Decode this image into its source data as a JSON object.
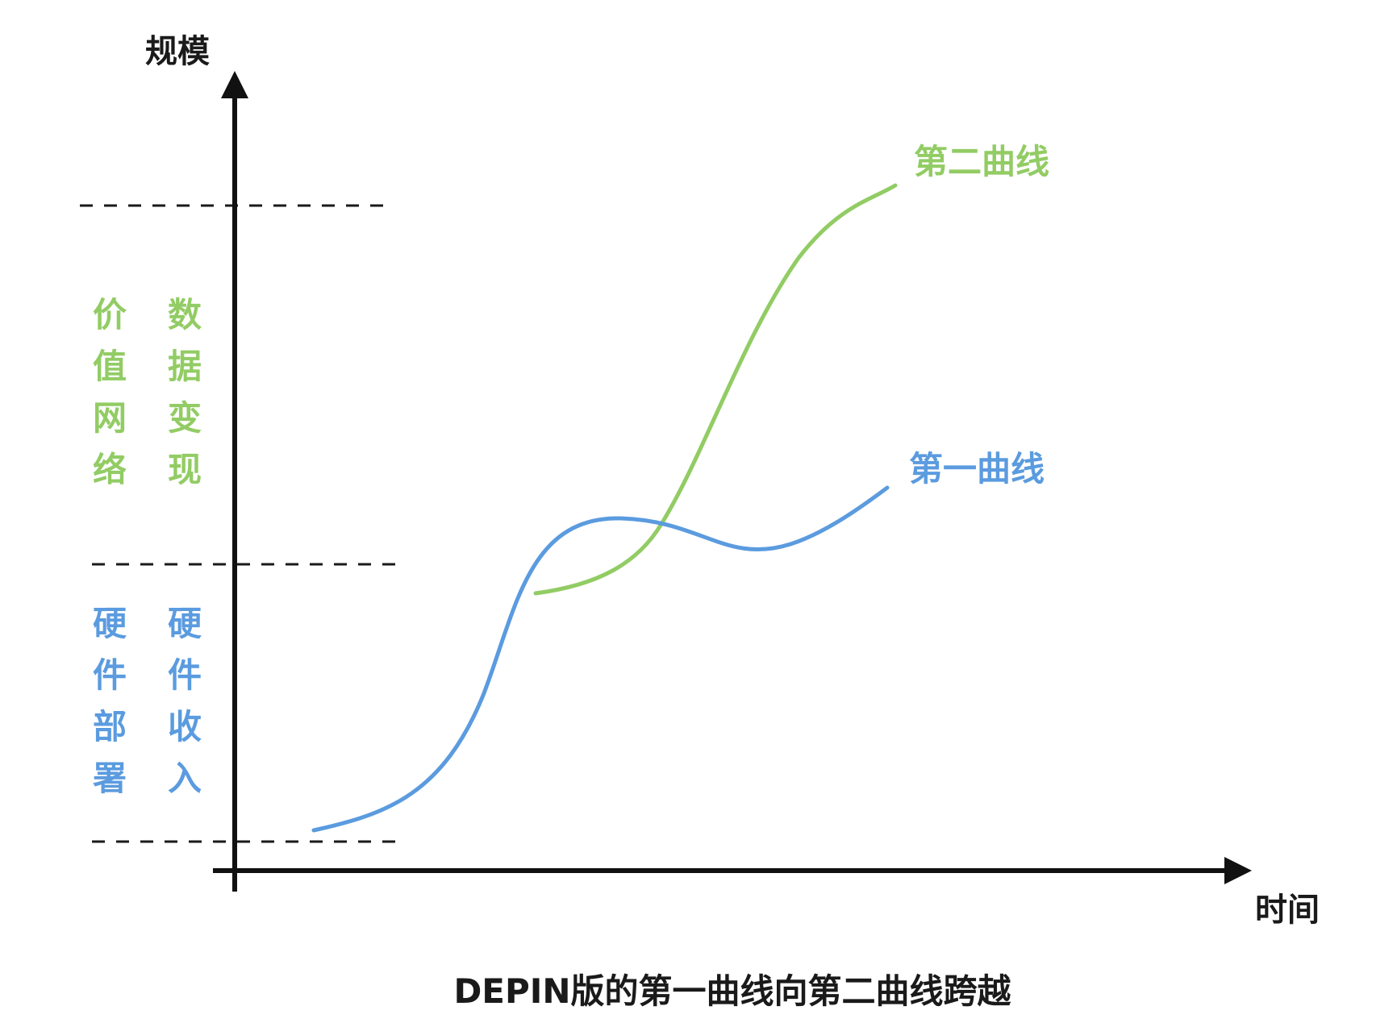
{
  "axes": {
    "y_label": "规模",
    "x_label": "时间"
  },
  "curves": {
    "first": {
      "label": "第一曲线",
      "color": "#5b9bdf"
    },
    "second": {
      "label": "第二曲线",
      "color": "#92cc64"
    }
  },
  "zones": {
    "upper": {
      "color": "#92cc64",
      "columns": [
        [
          "价",
          "值",
          "网",
          "络"
        ],
        [
          "数",
          "据",
          "变",
          "现"
        ]
      ]
    },
    "lower": {
      "color": "#5b9bdf",
      "columns": [
        [
          "硬",
          "件",
          "部",
          "署"
        ],
        [
          "硬",
          "件",
          "收",
          "入"
        ]
      ]
    }
  },
  "caption": "DEPIN版的第一曲线向第二曲线跨越"
}
